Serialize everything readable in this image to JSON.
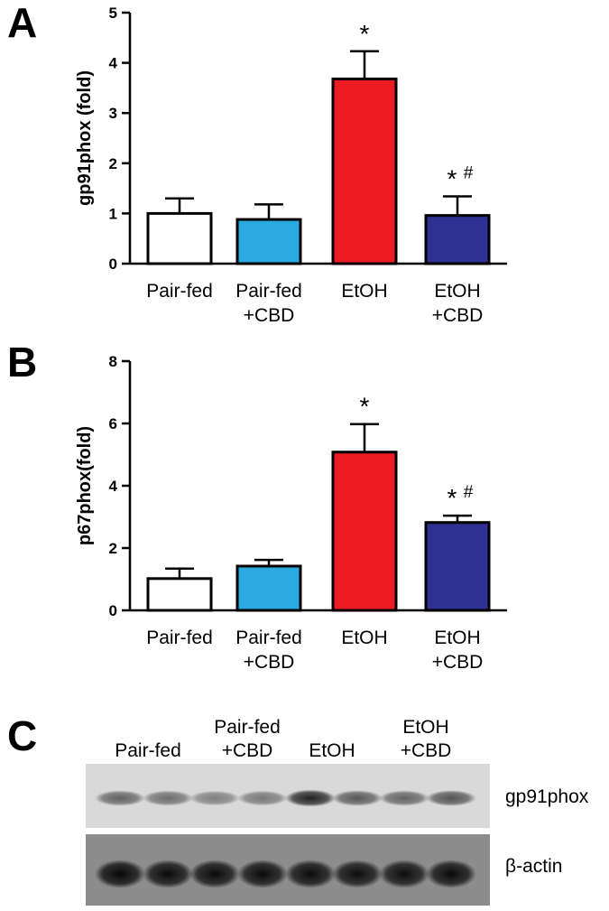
{
  "panels": {
    "A": "A",
    "B": "B",
    "C": "C"
  },
  "chart_data": [
    {
      "type": "bar",
      "panel": "A",
      "categories": [
        "Pair-fed   ",
        "Pair-fed\n+CBD",
        "EtOH",
        "EtOH\n+CBD"
      ],
      "category_labels": [
        [
          "Pair-fed"
        ],
        [
          "Pair-fed",
          "+CBD"
        ],
        [
          "EtOH"
        ],
        [
          "EtOH",
          "+CBD"
        ]
      ],
      "values": [
        1.0,
        0.88,
        3.68,
        0.96
      ],
      "errors": [
        0.3,
        0.3,
        0.55,
        0.38
      ],
      "annotations": [
        "",
        "",
        "*",
        "*#"
      ],
      "colors": [
        "#ffffff",
        "#29abe2",
        "#ed1c24",
        "#2e3192"
      ],
      "ylabel": "gp91phox (fold)",
      "ylim": [
        0,
        5
      ],
      "yticks": [
        0,
        1,
        2,
        3,
        4,
        5
      ]
    },
    {
      "type": "bar",
      "panel": "B",
      "categories": [
        "Pair-fed",
        "Pair-fed\n+CBD",
        "EtOH",
        "EtOH\n+CBD"
      ],
      "category_labels": [
        [
          "Pair-fed"
        ],
        [
          "Pair-fed",
          "+CBD"
        ],
        [
          "EtOH"
        ],
        [
          "EtOH",
          "+CBD"
        ]
      ],
      "values": [
        1.02,
        1.42,
        5.08,
        2.82
      ],
      "errors": [
        0.32,
        0.2,
        0.9,
        0.22
      ],
      "annotations": [
        "",
        "",
        "*",
        "*#"
      ],
      "colors": [
        "#ffffff",
        "#29abe2",
        "#ed1c24",
        "#2e3192"
      ],
      "ylabel": "p67phox(fold)",
      "ylim": [
        0,
        8
      ],
      "yticks": [
        0,
        2,
        4,
        6,
        8
      ]
    }
  ],
  "blot": {
    "lane_groups": [
      {
        "line1": "",
        "line2": "Pair-fed"
      },
      {
        "line1": "Pair-fed",
        "line2": "+CBD"
      },
      {
        "line1": "",
        "line2": "EtOH"
      },
      {
        "line1": "EtOH",
        "line2": "+CBD"
      }
    ],
    "rows": [
      {
        "label": "gp91phox",
        "band_intensity": [
          0.55,
          0.5,
          0.42,
          0.45,
          0.85,
          0.6,
          0.55,
          0.62
        ]
      },
      {
        "label": "β-actin",
        "band_intensity": [
          0.95,
          0.92,
          0.92,
          0.92,
          0.92,
          0.9,
          0.9,
          0.92
        ]
      }
    ]
  }
}
